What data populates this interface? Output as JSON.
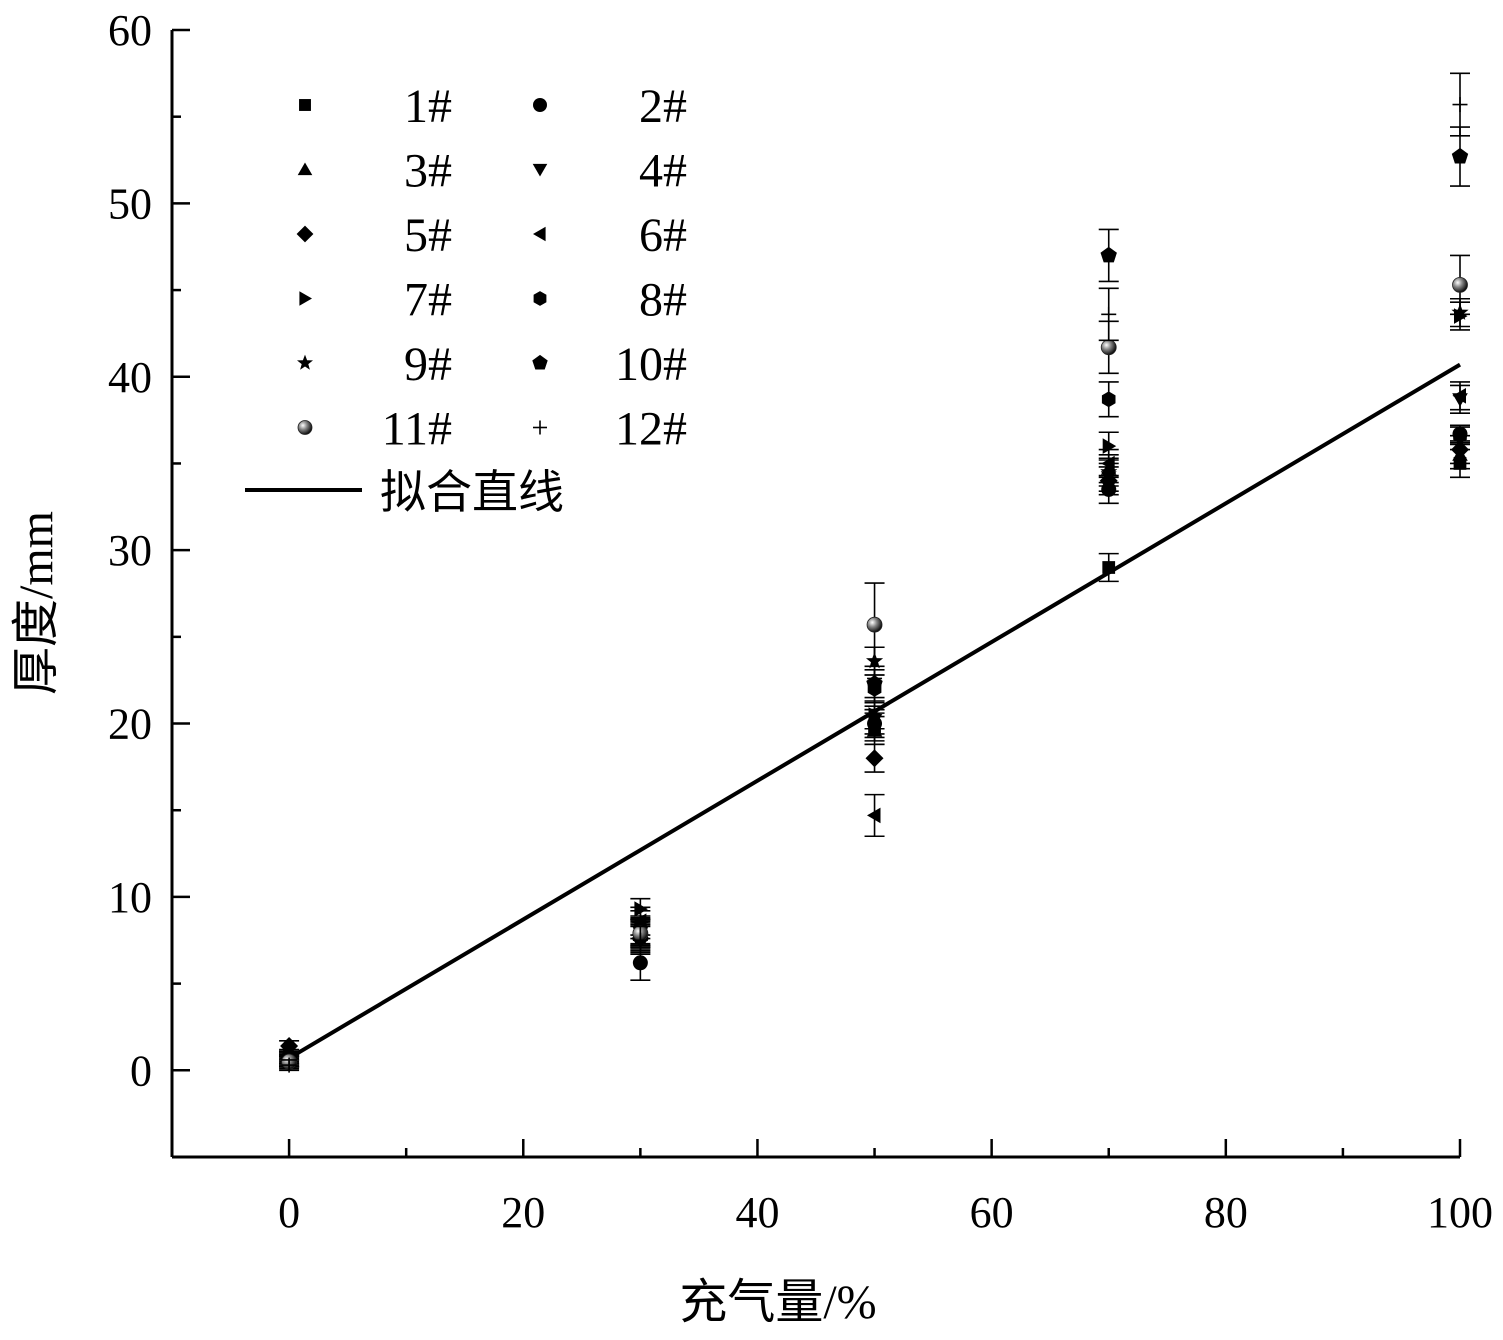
{
  "chart_data": {
    "type": "scatter",
    "xlabel": "充气量/%",
    "ylabel": "厚度/mm",
    "xlim": [
      -10,
      100
    ],
    "ylim": [
      -5,
      60
    ],
    "xticks": [
      0,
      20,
      40,
      60,
      80,
      100
    ],
    "yticks": [
      0,
      10,
      20,
      30,
      40,
      50,
      60
    ],
    "grid": false,
    "legend_position": "top-left",
    "series": [
      {
        "name": "1#",
        "marker": "square",
        "x": [
          0,
          30,
          50,
          70,
          100
        ],
        "y": [
          0.5,
          7.8,
          19.8,
          29.0,
          35.0
        ],
        "err": [
          0.3,
          0.8,
          0.8,
          0.8,
          0.8
        ]
      },
      {
        "name": "2#",
        "marker": "circle",
        "x": [
          0,
          30,
          50,
          70,
          100
        ],
        "y": [
          0.6,
          6.2,
          20.0,
          33.5,
          36.7
        ],
        "err": [
          0.3,
          1.0,
          0.8,
          0.8,
          0.5
        ]
      },
      {
        "name": "3#",
        "marker": "triangle-up",
        "x": [
          0,
          30,
          50,
          70,
          100
        ],
        "y": [
          0.5,
          8.0,
          19.6,
          34.7,
          35.5
        ],
        "err": [
          0.3,
          0.8,
          0.8,
          0.8,
          0.8
        ]
      },
      {
        "name": "4#",
        "marker": "triangle-down",
        "x": [
          0,
          30,
          50,
          70,
          100
        ],
        "y": [
          0.4,
          7.9,
          20.2,
          34.2,
          38.7
        ],
        "err": [
          0.3,
          0.8,
          0.8,
          0.8,
          0.8
        ]
      },
      {
        "name": "5#",
        "marker": "diamond",
        "x": [
          0,
          30,
          50,
          70,
          100
        ],
        "y": [
          1.4,
          7.6,
          18.0,
          34.0,
          35.8
        ],
        "err": [
          0.3,
          0.8,
          0.8,
          0.8,
          0.8
        ]
      },
      {
        "name": "6#",
        "marker": "triangle-left",
        "x": [
          0,
          30,
          50,
          70,
          100
        ],
        "y": [
          0.7,
          8.6,
          14.7,
          35.0,
          38.9
        ],
        "err": [
          0.3,
          0.8,
          1.2,
          0.8,
          0.8
        ]
      },
      {
        "name": "7#",
        "marker": "triangle-right",
        "x": [
          0,
          30,
          50,
          70,
          100
        ],
        "y": [
          0.9,
          9.3,
          20.5,
          36.0,
          43.5
        ],
        "err": [
          0.3,
          0.6,
          0.8,
          0.8,
          0.8
        ]
      },
      {
        "name": "8#",
        "marker": "hexagon",
        "x": [
          0,
          30,
          50,
          70,
          100
        ],
        "y": [
          0.8,
          8.1,
          22.0,
          38.7,
          36.6
        ],
        "err": [
          0.3,
          0.8,
          0.8,
          1.0,
          0.5
        ]
      },
      {
        "name": "9#",
        "marker": "star",
        "x": [
          0,
          30,
          50,
          70,
          100
        ],
        "y": [
          0.7,
          8.4,
          23.6,
          34.5,
          43.7
        ],
        "err": [
          0.3,
          0.8,
          0.8,
          0.8,
          0.8
        ]
      },
      {
        "name": "10#",
        "marker": "pentagon",
        "x": [
          0,
          30,
          50,
          70,
          100
        ],
        "y": [
          0.6,
          7.7,
          22.3,
          47.0,
          52.7
        ],
        "err": [
          0.3,
          0.8,
          0.8,
          1.5,
          1.7
        ]
      },
      {
        "name": "11#",
        "marker": "sphere",
        "x": [
          0,
          30,
          50,
          70,
          100
        ],
        "y": [
          0.5,
          7.9,
          25.7,
          41.7,
          45.3
        ],
        "err": [
          0.3,
          0.8,
          2.4,
          1.5,
          1.7
        ]
      },
      {
        "name": "12#",
        "marker": "plus",
        "x": [
          0,
          30,
          50,
          70,
          100
        ],
        "y": [
          0.3,
          7.5,
          22.6,
          43.6,
          55.7
        ],
        "err": [
          0.3,
          0.8,
          1.8,
          1.5,
          1.8
        ]
      }
    ],
    "fit_line": {
      "name": "拟合直线",
      "x": [
        0,
        100
      ],
      "y": [
        0.7,
        40.7
      ]
    }
  }
}
